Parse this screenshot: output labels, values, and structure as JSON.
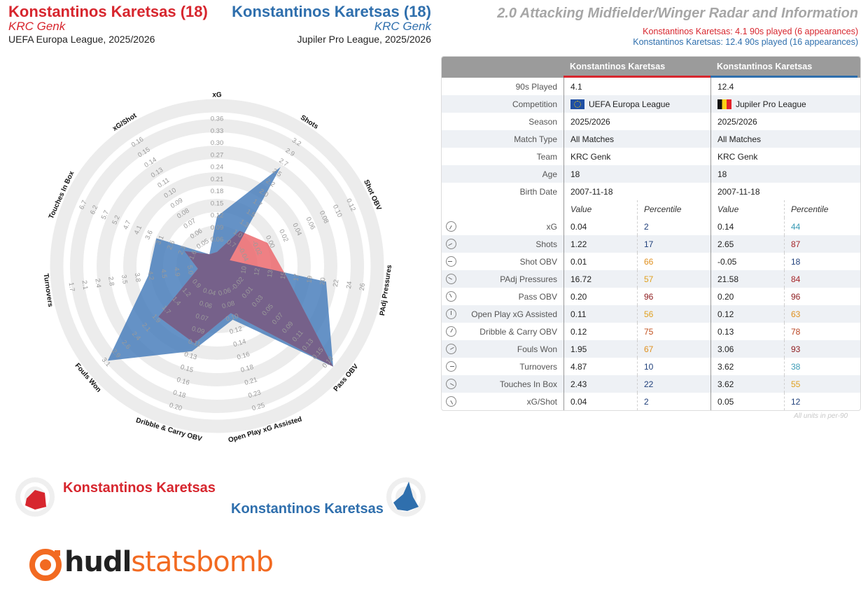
{
  "header": {
    "left": {
      "name": "Konstantinos Karetsas (18)",
      "team": "KRC Genk",
      "competition": "UEFA Europa League, 2025/2026"
    },
    "right": {
      "name": "Konstantinos Karetsas (18)",
      "team": "KRC Genk",
      "competition": "Jupiler Pro League, 2025/2026"
    },
    "title": "2.0 Attacking Midfielder/Winger Radar and Information",
    "sub_red": "Konstantinos Karetsas: 4.1 90s played (6 appearances)",
    "sub_blue": "Konstantinos Karetsas: 12.4 90s played (16 appearances)"
  },
  "colors": {
    "red": "#d7262e",
    "blue": "#2f6fad",
    "red_fill": "#ec6a6f",
    "blue_fill": "#4a7fbc",
    "overlap": "#6b5f8c"
  },
  "legend": {
    "red_name": "Konstantinos Karetsas",
    "blue_name": "Konstantinos Karetsas"
  },
  "logo": {
    "hudl": "hudl",
    "statsbomb": "statsbomb"
  },
  "chart_data": {
    "type": "radar",
    "metrics": [
      "xG",
      "Shots",
      "Shot OBV",
      "PAdj Pressures",
      "Pass OBV",
      "Open Play xG Assisted",
      "Dribble & Carry OBV",
      "Fouls Won",
      "Turnovers",
      "Touches In Box",
      "xG/Shot"
    ],
    "ticks": [
      [
        "0.06",
        "0.09",
        "0.12",
        "0.15",
        "0.18",
        "0.21",
        "0.24",
        "0.27",
        "0.30",
        "0.33",
        "0.36"
      ],
      [
        "0.7",
        "1.0",
        "1.3",
        "1.5",
        "1.7",
        "2.0",
        "2.2",
        "2.5",
        "2.7",
        "2.9",
        "3.2"
      ],
      [
        "-0.04",
        "-0.02",
        "0.00",
        "0.02",
        "0.04",
        "0.06",
        "0.08",
        "0.10",
        "0.12"
      ],
      [
        "10",
        "12",
        "13",
        "15",
        "17",
        "19",
        "20",
        "22",
        "24",
        "26"
      ],
      [
        "-0.02",
        "0.01",
        "0.03",
        "0.05",
        "0.07",
        "0.09",
        "0.11",
        "0.13",
        "0.15",
        "0.18"
      ],
      [
        "0.06",
        "0.08",
        "0.10",
        "0.12",
        "0.14",
        "0.16",
        "0.18",
        "0.21",
        "0.23",
        "0.25"
      ],
      [
        "0.04",
        "0.06",
        "0.07",
        "0.09",
        "0.11",
        "0.13",
        "0.15",
        "0.16",
        "0.18",
        "0.20"
      ],
      [
        "0.9",
        "1.2",
        "1.4",
        "1.7",
        "1.9",
        "2.1",
        "2.4",
        "2.6",
        "2.9",
        "3.1"
      ],
      [
        "5.0",
        "4.9",
        "4.5",
        "4.2",
        "3.8",
        "3.5",
        "2.8",
        "2.4",
        "2.1",
        "1.7"
      ],
      [
        "1.6",
        "2.1",
        "2.6",
        "3.1",
        "3.6",
        "4.1",
        "4.7",
        "5.2",
        "5.7",
        "6.2",
        "6.7"
      ],
      [
        "0.05",
        "0.06",
        "0.07",
        "0.08",
        "0.09",
        "0.10",
        "0.11",
        "0.13",
        "0.14",
        "0.15",
        "0.16"
      ]
    ],
    "series": [
      {
        "name": "Konstantinos Karetsas",
        "values": [
          0.04,
          1.22,
          0.01,
          16.72,
          0.2,
          0.11,
          0.12,
          1.95,
          4.87,
          2.43,
          0.04
        ]
      },
      {
        "name": "Konstantinos Karetsas",
        "values": [
          0.14,
          2.65,
          -0.05,
          21.58,
          0.2,
          0.12,
          0.13,
          3.06,
          3.62,
          3.62,
          0.05
        ]
      }
    ],
    "ranges": [
      [
        0.06,
        0.36
      ],
      [
        0.7,
        3.2
      ],
      [
        -0.04,
        0.12
      ],
      [
        10,
        26
      ],
      [
        -0.02,
        0.18
      ],
      [
        0.06,
        0.25
      ],
      [
        0.04,
        0.2
      ],
      [
        0.9,
        3.1
      ],
      [
        5.0,
        1.7
      ],
      [
        1.6,
        6.7
      ],
      [
        0.05,
        0.16
      ]
    ]
  },
  "table": {
    "head": {
      "p1": "Konstantinos Karetsas",
      "p2": "Konstantinos Karetsas"
    },
    "info_rows": [
      {
        "label": "90s Played",
        "p1": "4.1",
        "p2": "12.4"
      },
      {
        "label": "Competition",
        "p1": "UEFA Europa League",
        "p2": "Jupiler Pro League"
      },
      {
        "label": "Season",
        "p1": "2025/2026",
        "p2": "2025/2026"
      },
      {
        "label": "Match Type",
        "p1": "All Matches",
        "p2": "All Matches"
      },
      {
        "label": "Team",
        "p1": "KRC Genk",
        "p2": "KRC Genk"
      },
      {
        "label": "Age",
        "p1": "18",
        "p2": "18"
      },
      {
        "label": "Birth Date",
        "p1": "2007-11-18",
        "p2": "2007-11-18"
      }
    ],
    "col_value": "Value",
    "col_pct": "Percentile",
    "stat_rows": [
      {
        "label": "xG",
        "v1": "0.04",
        "p1": "2",
        "c1": "#1f3f7a",
        "v2": "0.14",
        "p2": "44",
        "c2": "#3a9bb5"
      },
      {
        "label": "Shots",
        "v1": "1.22",
        "p1": "17",
        "c1": "#1f3f7a",
        "v2": "2.65",
        "p2": "87",
        "c2": "#a5262a"
      },
      {
        "label": "Shot OBV",
        "v1": "0.01",
        "p1": "66",
        "c1": "#e0901f",
        "v2": "-0.05",
        "p2": "18",
        "c2": "#1f3f7a"
      },
      {
        "label": "PAdj Pressures",
        "v1": "16.72",
        "p1": "57",
        "c1": "#e0a020",
        "v2": "21.58",
        "p2": "84",
        "c2": "#a5262a"
      },
      {
        "label": "Pass OBV",
        "v1": "0.20",
        "p1": "96",
        "c1": "#8f1f22",
        "v2": "0.20",
        "p2": "96",
        "c2": "#8f1f22"
      },
      {
        "label": "Open Play xG Assisted",
        "v1": "0.11",
        "p1": "56",
        "c1": "#e0a020",
        "v2": "0.12",
        "p2": "63",
        "c2": "#e0901f"
      },
      {
        "label": "Dribble & Carry OBV",
        "v1": "0.12",
        "p1": "75",
        "c1": "#c2511f",
        "v2": "0.13",
        "p2": "78",
        "c2": "#b8421f"
      },
      {
        "label": "Fouls Won",
        "v1": "1.95",
        "p1": "67",
        "c1": "#e0901f",
        "v2": "3.06",
        "p2": "93",
        "c2": "#8f1f22"
      },
      {
        "label": "Turnovers",
        "v1": "4.87",
        "p1": "10",
        "c1": "#1f3f7a",
        "v2": "3.62",
        "p2": "38",
        "c2": "#3a9bb5"
      },
      {
        "label": "Touches In Box",
        "v1": "2.43",
        "p1": "22",
        "c1": "#1f3f7a",
        "v2": "3.62",
        "p2": "55",
        "c2": "#e0a020"
      },
      {
        "label": "xG/Shot",
        "v1": "0.04",
        "p1": "2",
        "c1": "#1f3f7a",
        "v2": "0.05",
        "p2": "12",
        "c2": "#1f3f7a"
      }
    ],
    "footnote": "All units in per-90"
  }
}
